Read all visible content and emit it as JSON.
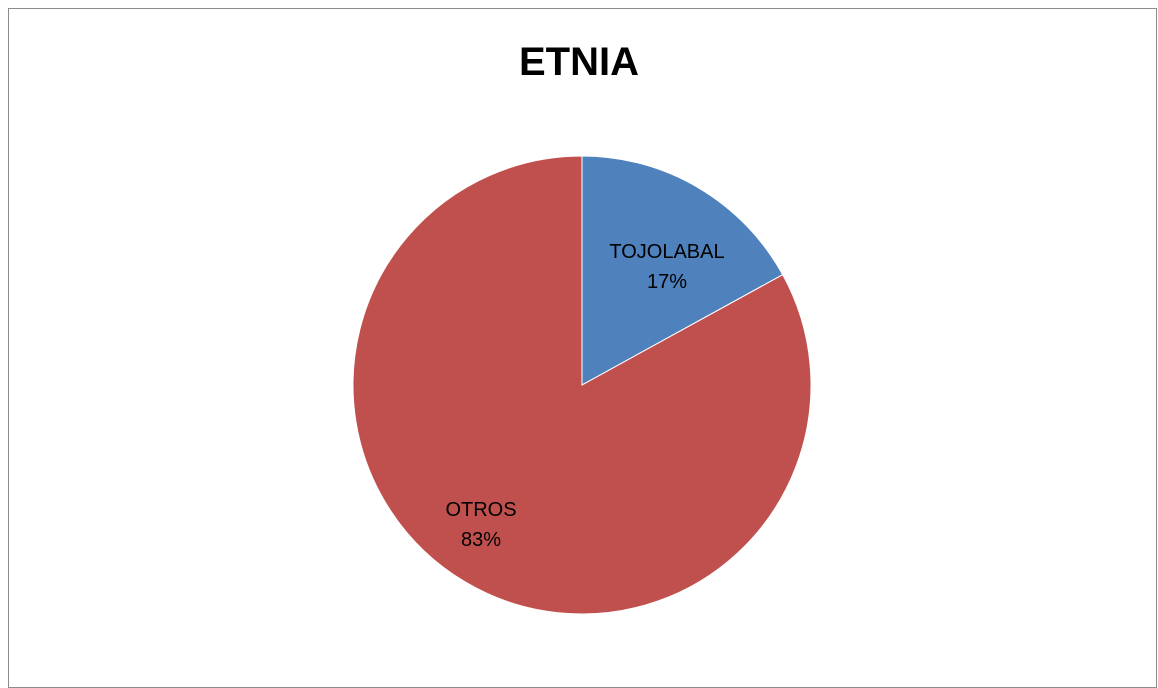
{
  "chart_data": {
    "type": "pie",
    "title": "ETNIA",
    "categories": [
      "TOJOLABAL",
      "OTROS"
    ],
    "values": [
      17,
      83
    ],
    "percent_labels": [
      "17%",
      "83%"
    ],
    "colors": [
      "#4F81BD",
      "#C0504D"
    ],
    "start_angle": "12 o'clock",
    "direction": "clockwise",
    "legend": "none"
  }
}
